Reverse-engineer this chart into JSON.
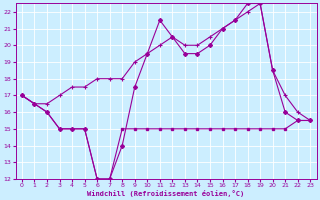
{
  "bg_color": "#cceeff",
  "grid_color": "#ffffff",
  "line_color": "#990099",
  "title": "Windchill (Refroidissement éolien,°C)",
  "xlim": [
    -0.5,
    23.5
  ],
  "ylim": [
    12,
    22.5
  ],
  "xticks": [
    0,
    1,
    2,
    3,
    4,
    5,
    6,
    7,
    8,
    9,
    10,
    11,
    12,
    13,
    14,
    15,
    16,
    17,
    18,
    19,
    20,
    21,
    22,
    23
  ],
  "yticks": [
    12,
    13,
    14,
    15,
    16,
    17,
    18,
    19,
    20,
    21,
    22
  ],
  "line1_x": [
    0,
    1,
    2,
    3,
    4,
    5,
    6,
    7,
    8,
    9,
    10,
    11,
    12,
    13,
    14,
    15,
    16,
    17,
    18,
    19,
    20,
    21,
    22,
    23
  ],
  "line1_y": [
    17.0,
    16.5,
    16.0,
    15.0,
    15.0,
    15.0,
    12.0,
    12.0,
    15.0,
    15.0,
    15.0,
    15.0,
    15.0,
    15.0,
    15.0,
    15.0,
    15.0,
    15.0,
    15.0,
    15.0,
    15.0,
    15.0,
    15.5,
    15.5
  ],
  "line2_x": [
    0,
    1,
    2,
    3,
    4,
    5,
    6,
    7,
    8,
    9,
    10,
    11,
    12,
    13,
    14,
    15,
    16,
    17,
    18,
    19,
    20,
    21,
    22,
    23
  ],
  "line2_y": [
    17.0,
    16.5,
    16.0,
    15.0,
    15.0,
    15.0,
    12.0,
    12.0,
    14.0,
    17.5,
    19.5,
    21.5,
    20.5,
    19.5,
    19.5,
    20.0,
    21.0,
    21.5,
    22.5,
    22.5,
    18.5,
    16.0,
    15.5,
    15.5
  ],
  "line3_x": [
    0,
    1,
    2,
    3,
    4,
    5,
    6,
    7,
    8,
    9,
    10,
    11,
    12,
    13,
    14,
    15,
    16,
    17,
    18,
    19,
    20,
    21,
    22,
    23
  ],
  "line3_y": [
    17.0,
    16.5,
    16.5,
    17.0,
    17.5,
    17.5,
    18.0,
    18.0,
    18.0,
    19.0,
    19.5,
    20.0,
    20.5,
    20.0,
    20.0,
    20.5,
    21.0,
    21.5,
    22.0,
    22.5,
    18.5,
    17.0,
    16.0,
    15.5
  ]
}
